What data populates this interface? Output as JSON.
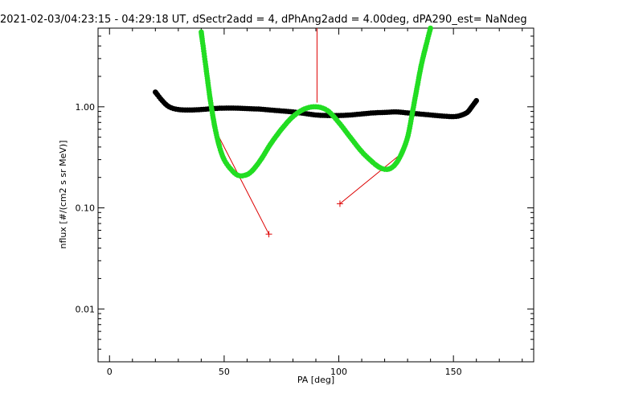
{
  "chart_data": {
    "type": "scatter",
    "title": "2021-02-03/04:23:15 - 04:29:18 UT, dSectr2add = 4, dPhAng2add = 4.00deg, dPA290_est=    NaNdeg",
    "xlabel": "PA [deg]",
    "ylabel": "nflux [#/(cm2 s sr MeV)]",
    "xlim": [
      -5,
      185
    ],
    "ylim": [
      0.003,
      6
    ],
    "yscale": "log",
    "x_ticks": [
      {
        "value": 0,
        "label": "0"
      },
      {
        "value": 50,
        "label": "50"
      },
      {
        "value": 100,
        "label": "100"
      },
      {
        "value": 150,
        "label": "150"
      }
    ],
    "y_ticks": [
      {
        "value": 0.01,
        "label": "0.01"
      },
      {
        "value": 0.1,
        "label": "0.10"
      },
      {
        "value": 1,
        "label": "1.00"
      }
    ],
    "grid": false,
    "series": [
      {
        "color": "#000000",
        "style": "thick-dots",
        "x": [
          20,
          23,
          26,
          30,
          35,
          40,
          45,
          50,
          55,
          60,
          65,
          70,
          75,
          80,
          85,
          90,
          95,
          100,
          105,
          110,
          115,
          120,
          125,
          130,
          135,
          140,
          145,
          150,
          153,
          156,
          158,
          160
        ],
        "y": [
          1.4,
          1.15,
          1.0,
          0.94,
          0.93,
          0.94,
          0.96,
          0.97,
          0.97,
          0.96,
          0.95,
          0.93,
          0.91,
          0.89,
          0.86,
          0.83,
          0.82,
          0.82,
          0.83,
          0.85,
          0.87,
          0.88,
          0.89,
          0.87,
          0.85,
          0.83,
          0.81,
          0.8,
          0.82,
          0.88,
          1.0,
          1.15
        ]
      },
      {
        "color": "#22dd22",
        "style": "thick-dots",
        "x": [
          40,
          42,
          44,
          46,
          48,
          50,
          53,
          56,
          59,
          62,
          66,
          70,
          75,
          80,
          85,
          90,
          95,
          100,
          105,
          110,
          115,
          118,
          121,
          124,
          127,
          130,
          132,
          134,
          136,
          138,
          140
        ],
        "y": [
          5.5,
          2.5,
          1.15,
          0.62,
          0.4,
          0.3,
          0.24,
          0.21,
          0.21,
          0.23,
          0.3,
          0.42,
          0.6,
          0.8,
          0.95,
          1.0,
          0.92,
          0.7,
          0.5,
          0.36,
          0.28,
          0.25,
          0.24,
          0.26,
          0.33,
          0.5,
          0.85,
          1.5,
          2.6,
          4.0,
          6.0
        ]
      }
    ],
    "annotations": [
      {
        "type": "line",
        "color": "#dd0000",
        "x": [
          90.5,
          90.5
        ],
        "y": [
          6.0,
          1.1
        ]
      },
      {
        "type": "line",
        "color": "#dd0000",
        "x": [
          46,
          69.5
        ],
        "y": [
          0.6,
          0.055
        ]
      },
      {
        "type": "marker",
        "symbol": "+",
        "color": "#dd0000",
        "x": 69.5,
        "y": 0.055
      },
      {
        "type": "line",
        "color": "#dd0000",
        "x": [
          127,
          100.5
        ],
        "y": [
          0.34,
          0.11
        ]
      },
      {
        "type": "marker",
        "symbol": "+",
        "color": "#dd0000",
        "x": 100.5,
        "y": 0.11
      }
    ]
  }
}
